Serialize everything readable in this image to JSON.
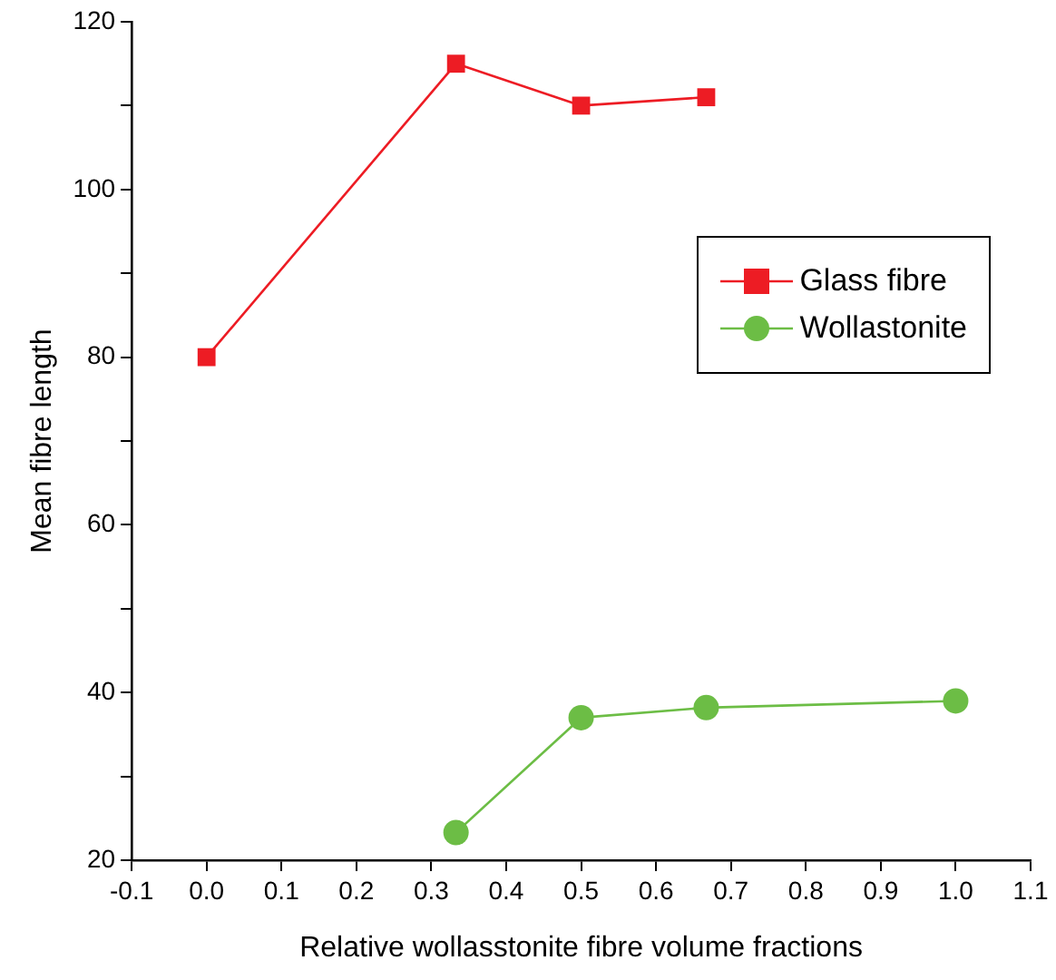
{
  "chart_data": {
    "type": "line",
    "xlabel": "Relative wollasstonite fibre volume fractions",
    "ylabel": "Mean fibre length",
    "series": [
      {
        "name": "Glass fibre",
        "color": "#ed1c24",
        "marker": "square",
        "x": [
          0,
          0.333,
          0.5,
          0.667
        ],
        "values": [
          80,
          115,
          110,
          111
        ]
      },
      {
        "name": "Wollastonite",
        "color": "#6cbd45",
        "marker": "circle",
        "x": [
          0.333,
          0.5,
          0.667,
          1.0
        ],
        "values": [
          23.3,
          37,
          38.2,
          39
        ]
      }
    ],
    "xlim": [
      -0.1,
      1.1
    ],
    "xticks": [
      -0.1,
      {
        "value": 0,
        "label": "0.0"
      },
      0.1,
      0.2,
      0.3,
      0.4,
      0.5,
      0.6,
      0.7,
      0.8,
      0.9,
      {
        "value": 1,
        "label": "1.0"
      },
      1.1
    ],
    "ylim": [
      20,
      120
    ],
    "yticks": [
      20,
      {
        "value": 30,
        "label": null
      },
      40,
      {
        "value": 50,
        "label": null
      },
      60,
      {
        "value": 70,
        "label": null
      },
      80,
      {
        "value": 90,
        "label": null
      },
      100,
      {
        "value": 110,
        "label": null
      },
      120
    ],
    "grid": false,
    "legend": "top right",
    "line_style": "solid"
  }
}
